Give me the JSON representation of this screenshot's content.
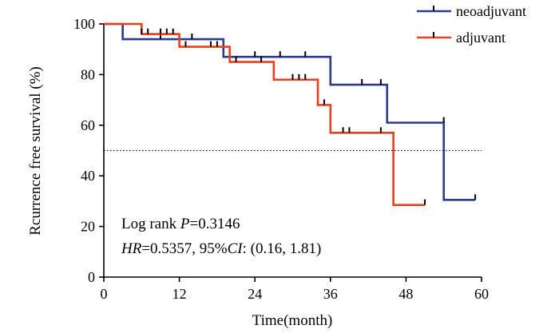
{
  "chart_data": {
    "type": "line",
    "step": true,
    "title": "",
    "xlabel": "Time(month)",
    "ylabel": "Rcurrence free survival (%)",
    "xlim": [
      0,
      60
    ],
    "ylim": [
      0,
      100
    ],
    "xticks": [
      0,
      12,
      24,
      36,
      48,
      60
    ],
    "yticks": [
      0,
      20,
      40,
      60,
      80,
      100
    ],
    "reference_line": {
      "y": 50,
      "style": "dotted"
    },
    "series": [
      {
        "name": "neoadjuvant",
        "color": "#2b3990",
        "x": [
          0,
          3,
          19,
          36,
          45,
          54,
          59
        ],
        "y": [
          100,
          94,
          87,
          76,
          61,
          30.5,
          30.5
        ],
        "censored": [
          [
            9,
            94
          ],
          [
            14,
            94
          ],
          [
            20,
            87
          ],
          [
            24,
            87
          ],
          [
            28,
            87
          ],
          [
            32,
            87
          ],
          [
            41,
            76
          ],
          [
            44,
            76
          ],
          [
            54,
            61
          ],
          [
            59,
            30.5
          ]
        ]
      },
      {
        "name": "adjuvant",
        "color": "#e8401c",
        "x": [
          0,
          6,
          12,
          20,
          27,
          34,
          36,
          46,
          51
        ],
        "y": [
          100,
          96,
          91,
          85,
          78,
          68,
          57,
          28.5,
          28.5
        ],
        "censored": [
          [
            6,
            96
          ],
          [
            7,
            96
          ],
          [
            9,
            96
          ],
          [
            10,
            96
          ],
          [
            11,
            96
          ],
          [
            13,
            91
          ],
          [
            17,
            91
          ],
          [
            18,
            91
          ],
          [
            21,
            85
          ],
          [
            25,
            85
          ],
          [
            30,
            78
          ],
          [
            31,
            78
          ],
          [
            32,
            78
          ],
          [
            35,
            68
          ],
          [
            38,
            57
          ],
          [
            39,
            57
          ],
          [
            44,
            57
          ],
          [
            51,
            28.5
          ]
        ]
      }
    ],
    "annotation": {
      "line1_prefix": "Log rank ",
      "line1_italic": "P",
      "line1_value": "=0.3146",
      "line2_hr": "HR",
      "line2_mid": "=0.5357, 95%",
      "line2_ci": "CI",
      "line2_tail": ": (0.16, 1.81)"
    }
  }
}
